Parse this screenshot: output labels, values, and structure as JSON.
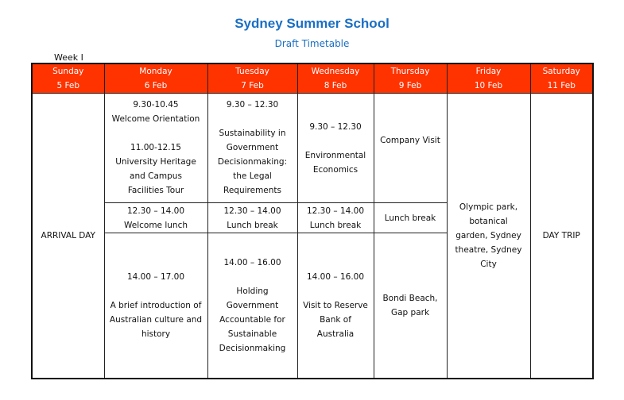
{
  "title": "Sydney Summer School",
  "subtitle": "Draft Timetable",
  "week": "Week I",
  "days": [
    {
      "day": "Sunday",
      "date": "5 Feb"
    },
    {
      "day": "Monday",
      "date": "6 Feb"
    },
    {
      "day": "Tuesday",
      "date": "7 Feb"
    },
    {
      "day": "Wednesday",
      "date": "8 Feb"
    },
    {
      "day": "Thursday",
      "date": "9 Feb"
    },
    {
      "day": "Friday",
      "date": "10 Feb"
    },
    {
      "day": "Saturday",
      "date": "11 Feb"
    }
  ],
  "sunday": "ARRIVAL DAY",
  "monday": {
    "m1_time": "9.30-10.45",
    "m1_title": "Welcome Orientation",
    "m2_time": "11.00-12.15",
    "m2_title": "University Heritage and Campus Facilities Tour",
    "lunch_time": "12.30 – 14.00",
    "lunch": "Welcome lunch",
    "pm_time": "14.00 – 17.00",
    "pm_title": "A brief introduction of Australian culture and history"
  },
  "tuesday": {
    "am_time": "9.30 – 12.30",
    "am_title": "Sustainability in Government Decisionmaking: the Legal Requirements",
    "lunch_time": "12.30 – 14.00",
    "lunch": "Lunch break",
    "pm_time": "14.00 – 16.00",
    "pm_title": "Holding Government Accountable for Sustainable Decisionmaking"
  },
  "wednesday": {
    "am_time": "9.30 – 12.30",
    "am_title": "Environmental Economics",
    "lunch_time": "12.30 – 14.00",
    "lunch": "Lunch break",
    "pm_time": "14.00 – 16.00",
    "pm_title": "Visit to Reserve Bank of Australia"
  },
  "thursday": {
    "am": "Company Visit",
    "lunch": "Lunch break",
    "pm": "Bondi Beach, Gap park"
  },
  "friday": "Olympic park, botanical garden, Sydney theatre, Sydney City",
  "saturday": "DAY TRIP",
  "colors": {
    "header_bg": "#ff3300",
    "title": "#1a6fc4"
  }
}
